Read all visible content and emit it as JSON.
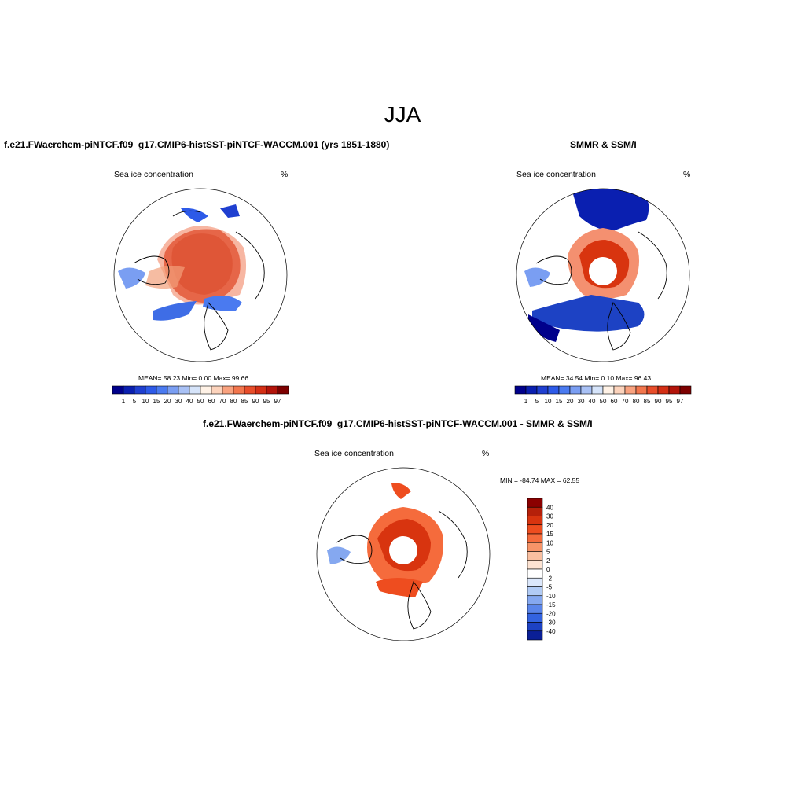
{
  "figure": {
    "season": "JJA",
    "panels": [
      {
        "title": "f.e21.FWaerchem-piNTCF.f09_g17.CMIP6-histSST-piNTCF-WACCM.001 (yrs 1851-1880)",
        "subtitle_left": "Sea ice concentration",
        "subtitle_right": "%",
        "stats": "MEAN=  58.23  Min=   0.00  Max=  99.66"
      },
      {
        "title": "SMMR & SSM/I",
        "subtitle_left": "Sea ice concentration",
        "subtitle_right": "%",
        "stats": "MEAN=  34.54  Min=   0.10  Max=  96.43"
      },
      {
        "title": "f.e21.FWaerchem-piNTCF.f09_g17.CMIP6-histSST-piNTCF-WACCM.001 - SMMR & SSM/I",
        "subtitle_left": "Sea ice concentration",
        "subtitle_right": "%",
        "stats": "MIN = -84.74 MAX =  62.55"
      }
    ]
  },
  "chart_data": [
    {
      "type": "heatmap",
      "projection": "north-polar-stereographic",
      "title": "f.e21.FWaerchem-piNTCF.f09_g17.CMIP6-histSST-piNTCF-WACCM.001 (yrs 1851-1880)",
      "variable": "Sea ice concentration",
      "units": "%",
      "mean": 58.23,
      "min": 0.0,
      "max": 99.66,
      "colorbar": {
        "orientation": "horizontal",
        "levels": [
          "1",
          "5",
          "10",
          "15",
          "20",
          "30",
          "40",
          "50",
          "60",
          "70",
          "80",
          "85",
          "90",
          "95",
          "97"
        ],
        "colors": [
          "#00008b",
          "#0a1fb0",
          "#1f3fd0",
          "#2d5ae8",
          "#4a7af0",
          "#7a9ef2",
          "#a9c1f5",
          "#d6e4fa",
          "#fff2e6",
          "#fcd3bc",
          "#f9a27f",
          "#f2764d",
          "#e84d2a",
          "#d42f15",
          "#b3140a",
          "#7d0000"
        ]
      }
    },
    {
      "type": "heatmap",
      "projection": "north-polar-stereographic",
      "title": "SMMR & SSM/I",
      "variable": "Sea ice concentration",
      "units": "%",
      "mean": 34.54,
      "min": 0.1,
      "max": 96.43,
      "colorbar": {
        "orientation": "horizontal",
        "levels": [
          "1",
          "5",
          "10",
          "15",
          "20",
          "30",
          "40",
          "50",
          "60",
          "70",
          "80",
          "85",
          "90",
          "95",
          "97"
        ],
        "colors": [
          "#00008b",
          "#0a1fb0",
          "#1f3fd0",
          "#2d5ae8",
          "#4a7af0",
          "#7a9ef2",
          "#a9c1f5",
          "#d6e4fa",
          "#fff2e6",
          "#fcd3bc",
          "#f9a27f",
          "#f2764d",
          "#e84d2a",
          "#d42f15",
          "#b3140a",
          "#7d0000"
        ]
      }
    },
    {
      "type": "heatmap",
      "projection": "north-polar-stereographic",
      "title": "f.e21.FWaerchem-piNTCF.f09_g17.CMIP6-histSST-piNTCF-WACCM.001 - SMMR & SSM/I",
      "variable": "Sea ice concentration",
      "units": "%",
      "min": -84.74,
      "max": 62.55,
      "colorbar": {
        "orientation": "vertical",
        "levels": [
          "40",
          "30",
          "20",
          "15",
          "10",
          "5",
          "2",
          "0",
          "-2",
          "-5",
          "-10",
          "-15",
          "-20",
          "-30",
          "-40"
        ],
        "colors": [
          "#8b0000",
          "#b5200a",
          "#d8340f",
          "#ee4d1f",
          "#f56b3c",
          "#f79468",
          "#f9bfa0",
          "#fde3d2",
          "#ffffff",
          "#dbe7fb",
          "#b1cbf5",
          "#85a8f0",
          "#5a85ea",
          "#3363e0",
          "#1d42c4",
          "#0a1f96"
        ]
      }
    }
  ]
}
